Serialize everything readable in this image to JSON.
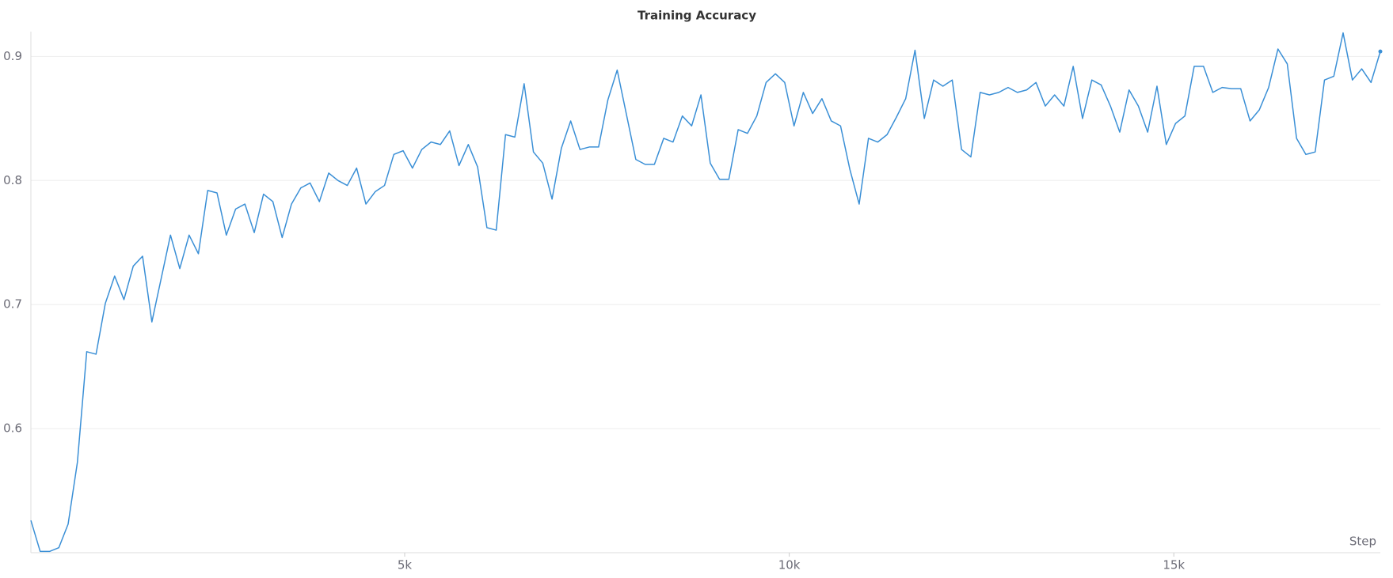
{
  "chart_data": {
    "type": "line",
    "title": "Training Accuracy",
    "x_label": "Step",
    "color": "#3a8fd6",
    "grid": true,
    "xlim": [
      140,
      17685
    ],
    "ylim": [
      0.5,
      0.92
    ],
    "xticks": [
      {
        "value": 5000,
        "label": "5k"
      },
      {
        "value": 10000,
        "label": "10k"
      },
      {
        "value": 15000,
        "label": "15k"
      }
    ],
    "yticks": [
      0.6,
      0.7,
      0.8,
      0.9
    ],
    "x": [
      140,
      261,
      382,
      503,
      624,
      745,
      866,
      987,
      1108,
      1229,
      1350,
      1471,
      1592,
      1713,
      1834,
      1955,
      2076,
      2197,
      2318,
      2439,
      2560,
      2681,
      2802,
      2923,
      3044,
      3165,
      3286,
      3407,
      3528,
      3649,
      3770,
      3891,
      4012,
      4133,
      4254,
      4375,
      4496,
      4617,
      4738,
      4859,
      4980,
      5101,
      5222,
      5343,
      5464,
      5585,
      5706,
      5827,
      5948,
      6069,
      6190,
      6311,
      6432,
      6553,
      6674,
      6795,
      6916,
      7037,
      7158,
      7279,
      7400,
      7521,
      7642,
      7763,
      7884,
      8005,
      8126,
      8247,
      8368,
      8489,
      8610,
      8731,
      8852,
      8973,
      9094,
      9215,
      9336,
      9457,
      9578,
      9699,
      9820,
      9941,
      10062,
      10183,
      10304,
      10425,
      10546,
      10667,
      10788,
      10909,
      11030,
      11151,
      11272,
      11393,
      11514,
      11635,
      11756,
      11877,
      11998,
      12119,
      12240,
      12361,
      12482,
      12603,
      12724,
      12845,
      12966,
      13087,
      13208,
      13329,
      13450,
      13571,
      13692,
      13813,
      13934,
      14055,
      14176,
      14297,
      14418,
      14539,
      14660,
      14781,
      14902,
      15023,
      15144,
      15265,
      15386,
      15507,
      15628,
      15749,
      15870,
      15991,
      16112,
      16233,
      16354,
      16475,
      16596,
      16717,
      16838,
      16959,
      17080,
      17201,
      17322,
      17443,
      17564,
      17685
    ],
    "values": [
      0.526,
      0.501,
      0.501,
      0.504,
      0.523,
      0.573,
      0.662,
      0.66,
      0.701,
      0.723,
      0.704,
      0.731,
      0.739,
      0.686,
      0.721,
      0.756,
      0.729,
      0.756,
      0.741,
      0.792,
      0.79,
      0.756,
      0.777,
      0.781,
      0.758,
      0.789,
      0.783,
      0.754,
      0.781,
      0.794,
      0.798,
      0.783,
      0.806,
      0.8,
      0.796,
      0.81,
      0.781,
      0.791,
      0.796,
      0.821,
      0.824,
      0.81,
      0.825,
      0.831,
      0.829,
      0.84,
      0.812,
      0.829,
      0.811,
      0.762,
      0.76,
      0.837,
      0.835,
      0.878,
      0.823,
      0.814,
      0.785,
      0.826,
      0.848,
      0.825,
      0.827,
      0.827,
      0.865,
      0.889,
      0.853,
      0.817,
      0.813,
      0.813,
      0.834,
      0.831,
      0.852,
      0.844,
      0.869,
      0.814,
      0.801,
      0.801,
      0.841,
      0.838,
      0.852,
      0.879,
      0.886,
      0.879,
      0.844,
      0.871,
      0.854,
      0.866,
      0.848,
      0.844,
      0.809,
      0.781,
      0.834,
      0.831,
      0.837,
      0.851,
      0.866,
      0.905,
      0.85,
      0.881,
      0.876,
      0.881,
      0.825,
      0.819,
      0.871,
      0.869,
      0.871,
      0.875,
      0.871,
      0.873,
      0.879,
      0.86,
      0.869,
      0.86,
      0.892,
      0.85,
      0.881,
      0.877,
      0.86,
      0.839,
      0.873,
      0.86,
      0.839,
      0.876,
      0.829,
      0.846,
      0.852,
      0.892,
      0.892,
      0.871,
      0.875,
      0.874,
      0.874,
      0.848,
      0.857,
      0.875,
      0.906,
      0.894,
      0.834,
      0.821,
      0.823,
      0.881,
      0.884,
      0.919,
      0.881,
      0.89,
      0.879,
      0.904
    ]
  }
}
